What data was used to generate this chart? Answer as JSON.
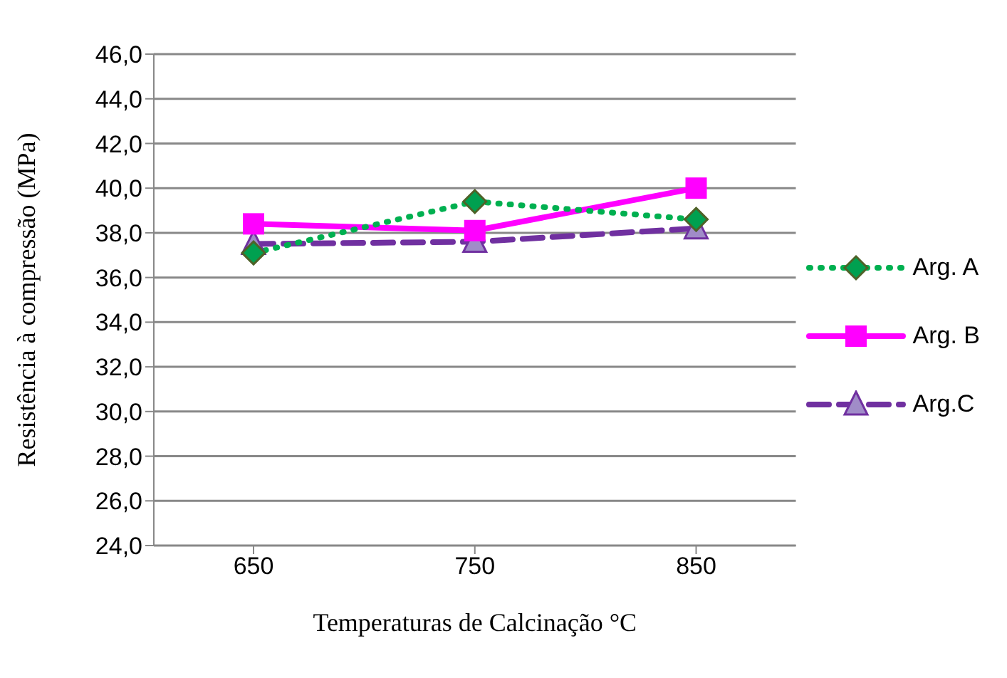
{
  "chart_data": {
    "type": "line",
    "xlabel": "Temperaturas de Calcinação °C",
    "ylabel": "Resistência à compressão (MPa)",
    "categories": [
      "650",
      "750",
      "850"
    ],
    "series": [
      {
        "name": "Arg. A",
        "color": "#00b050",
        "values": [
          37.1,
          39.4,
          38.6
        ],
        "marker": "diamond",
        "line_style": "dotted"
      },
      {
        "name": "Arg. B",
        "color": "#ff00ff",
        "values": [
          38.4,
          38.1,
          40.0
        ],
        "marker": "square",
        "line_style": "solid"
      },
      {
        "name": "Arg.C",
        "color": "#7030a0",
        "values": [
          37.5,
          37.6,
          38.2
        ],
        "marker": "triangle",
        "line_style": "dashed"
      }
    ],
    "ylim": [
      24,
      46
    ],
    "yticks": [
      {
        "value": 24,
        "label": "24,0"
      },
      {
        "value": 26,
        "label": "26,0"
      },
      {
        "value": 28,
        "label": "28,0"
      },
      {
        "value": 30,
        "label": "30,0"
      },
      {
        "value": 32,
        "label": "32,0"
      },
      {
        "value": 34,
        "label": "34,0"
      },
      {
        "value": 36,
        "label": "36,0"
      },
      {
        "value": 38,
        "label": "38,0"
      },
      {
        "value": 40,
        "label": "40,0"
      },
      {
        "value": 42,
        "label": "42,0"
      },
      {
        "value": 44,
        "label": "44,0"
      },
      {
        "value": 46,
        "label": "46,0"
      }
    ],
    "grid": "y",
    "legend": "right"
  }
}
